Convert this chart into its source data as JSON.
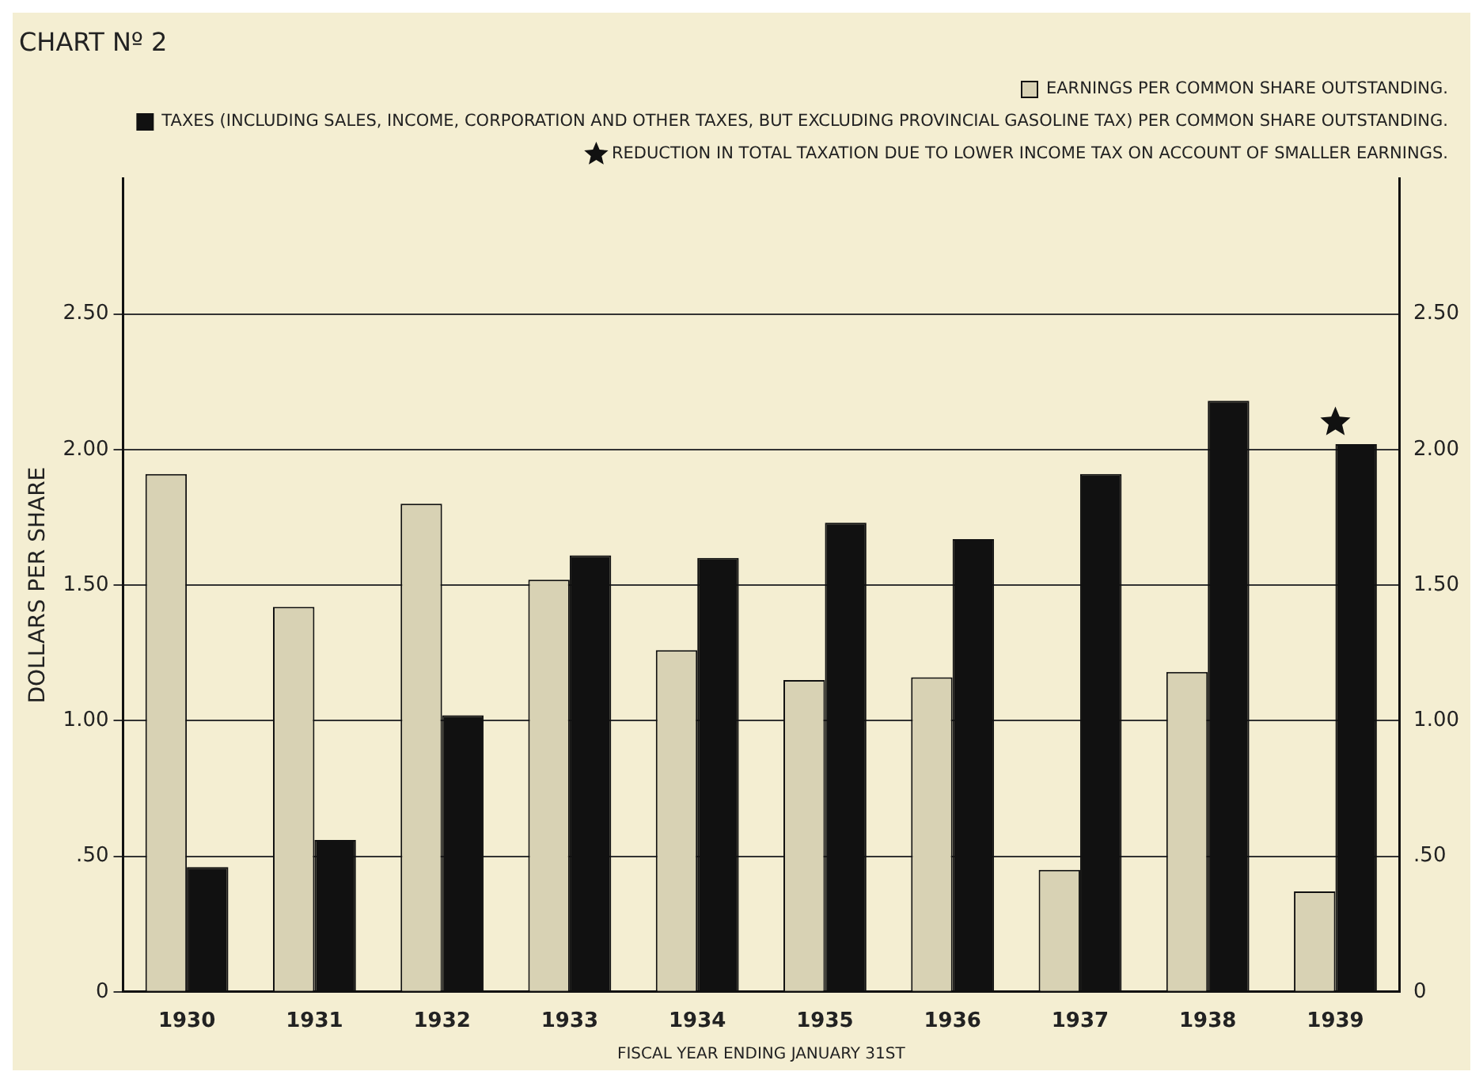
{
  "chart_data": {
    "type": "bar",
    "title": "CHART Nº 2",
    "xlabel": "FISCAL YEAR ENDING JANUARY 31ST",
    "ylabel": "DOLLARS PER SHARE",
    "categories": [
      "1930",
      "1931",
      "1932",
      "1933",
      "1934",
      "1935",
      "1936",
      "1937",
      "1938",
      "1939"
    ],
    "series": [
      {
        "name": "EARNINGS PER COMMON SHARE OUTSTANDING.",
        "color": "#d8d2b4",
        "values": [
          1.91,
          1.42,
          1.8,
          1.52,
          1.26,
          1.15,
          1.16,
          0.45,
          1.18,
          0.37
        ]
      },
      {
        "name": "TAXES (INCLUDING SALES, INCOME, CORPORATION AND OTHER TAXES, BUT EXCLUDING PROVINCIAL GASOLINE TAX) PER COMMON SHARE OUTSTANDING.",
        "color": "#111111",
        "values": [
          0.46,
          0.56,
          1.02,
          1.61,
          1.6,
          1.73,
          1.67,
          1.91,
          2.18,
          2.02
        ]
      },
      {
        "name": "REDUCTION IN TOTAL TAXATION DUE TO LOWER INCOME TAX ON ACCOUNT OF SMALLER EARNINGS.",
        "type": "scatter",
        "marker": "star",
        "color": "#111111",
        "values": [
          null,
          null,
          null,
          null,
          null,
          null,
          null,
          null,
          null,
          2.1
        ]
      }
    ],
    "ylim": [
      0,
      3.0
    ],
    "yticks": [
      0,
      {
        "value": 0.5,
        "label": ".50"
      },
      {
        "value": 1.0,
        "label": "1.00"
      },
      {
        "value": 1.5,
        "label": "1.50"
      },
      {
        "value": 2.0,
        "label": "2.00"
      },
      {
        "value": 2.5,
        "label": "2.50"
      }
    ],
    "y2lim": [
      0,
      3.0
    ],
    "y2ticks": [
      0,
      {
        "value": 0.5,
        "label": ".50"
      },
      {
        "value": 1.0,
        "label": "1.00"
      },
      {
        "value": 1.5,
        "label": "1.50"
      },
      {
        "value": 2.0,
        "label": "2.00"
      },
      {
        "value": 2.5,
        "label": "2.50"
      }
    ],
    "grid": "y",
    "legend": "top right"
  }
}
